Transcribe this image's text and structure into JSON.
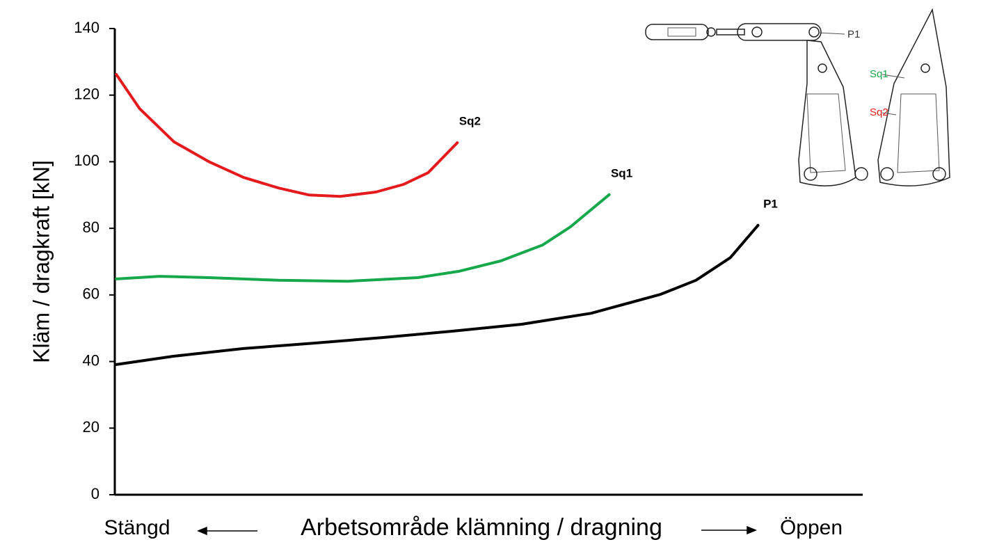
{
  "chart_data": {
    "type": "line",
    "ylabel": "Kläm / dragkraft [kN]",
    "xlabel": "Arbetsområde klämning / dragning",
    "x_start_label": "Stängd",
    "x_end_label": "Öppen",
    "xlim": [
      0,
      100
    ],
    "ylim": [
      0,
      140
    ],
    "yticks": [
      0,
      20,
      40,
      60,
      80,
      100,
      120,
      140
    ],
    "series": [
      {
        "name": "Sq2",
        "color": "#e41a1c",
        "x": [
          0.2,
          3.3,
          7.9,
          12.6,
          17.2,
          21.9,
          26,
          30.2,
          34.9,
          38.6,
          41.9,
          45.8
        ],
        "values": [
          126.2,
          116,
          106,
          100,
          95.3,
          92.1,
          90,
          89.6,
          90.9,
          93.2,
          96.7,
          105.7
        ]
      },
      {
        "name": "Sq1",
        "color": "#16a84b",
        "x": [
          0.2,
          6.0,
          12.6,
          21.9,
          31.2,
          40.5,
          46,
          51.6,
          57.2,
          60.9,
          66.1
        ],
        "values": [
          64.8,
          65.6,
          65.2,
          64.4,
          64.1,
          65.2,
          67.1,
          70.2,
          75,
          80.4,
          90.1
        ]
      },
      {
        "name": "P1",
        "color": "#000000",
        "x": [
          0.2,
          7.9,
          17.2,
          26.5,
          35.8,
          45.1,
          54.4,
          63.7,
          73,
          77.7,
          82.3,
          86.0
        ],
        "values": [
          39.1,
          41.6,
          43.9,
          45.5,
          47.2,
          49.1,
          51.2,
          54.5,
          60.2,
          64.4,
          71.2,
          80.9
        ]
      }
    ],
    "diagram_labels": [
      {
        "text": "P1",
        "color": "#333333"
      },
      {
        "text": "Sq1",
        "color": "#16a84b"
      },
      {
        "text": "Sq2",
        "color": "#e41a1c"
      }
    ]
  }
}
